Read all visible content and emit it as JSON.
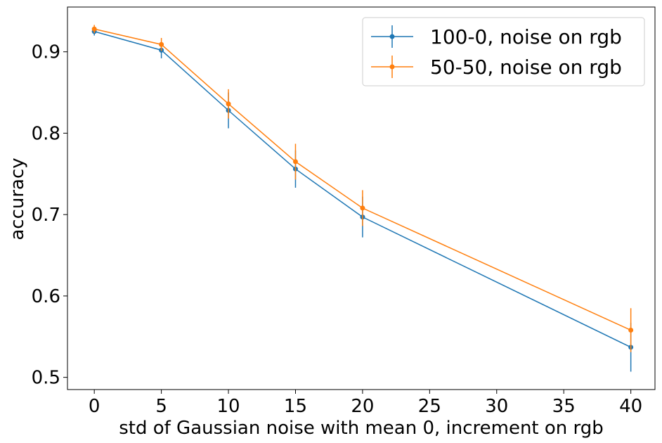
{
  "chart_data": {
    "type": "line",
    "xlabel": "std of Gaussian noise with mean 0, increment on rgb",
    "ylabel": "accuracy",
    "xlim": [
      -2,
      41.8
    ],
    "ylim": [
      0.485,
      0.955
    ],
    "xticks": [
      0,
      5,
      10,
      15,
      20,
      25,
      30,
      35,
      40
    ],
    "yticks": [
      0.5,
      0.6,
      0.7,
      0.8,
      0.9
    ],
    "ytick_labels": [
      "0.5",
      "0.6",
      "0.7",
      "0.8",
      "0.9"
    ],
    "x": [
      0,
      5,
      10,
      15,
      20,
      40
    ],
    "series": [
      {
        "name": "100-0, noise on rgb",
        "color": "#1f77b4",
        "values": [
          0.925,
          0.902,
          0.828,
          0.756,
          0.697,
          0.537
        ],
        "errors": [
          0.005,
          0.01,
          0.022,
          0.023,
          0.025,
          0.03
        ]
      },
      {
        "name": "50-50, noise on rgb",
        "color": "#ff7f0e",
        "values": [
          0.928,
          0.909,
          0.836,
          0.765,
          0.708,
          0.558
        ],
        "errors": [
          0.005,
          0.008,
          0.018,
          0.022,
          0.022,
          0.027
        ]
      }
    ],
    "legend_position": "top-right",
    "grid": false
  }
}
